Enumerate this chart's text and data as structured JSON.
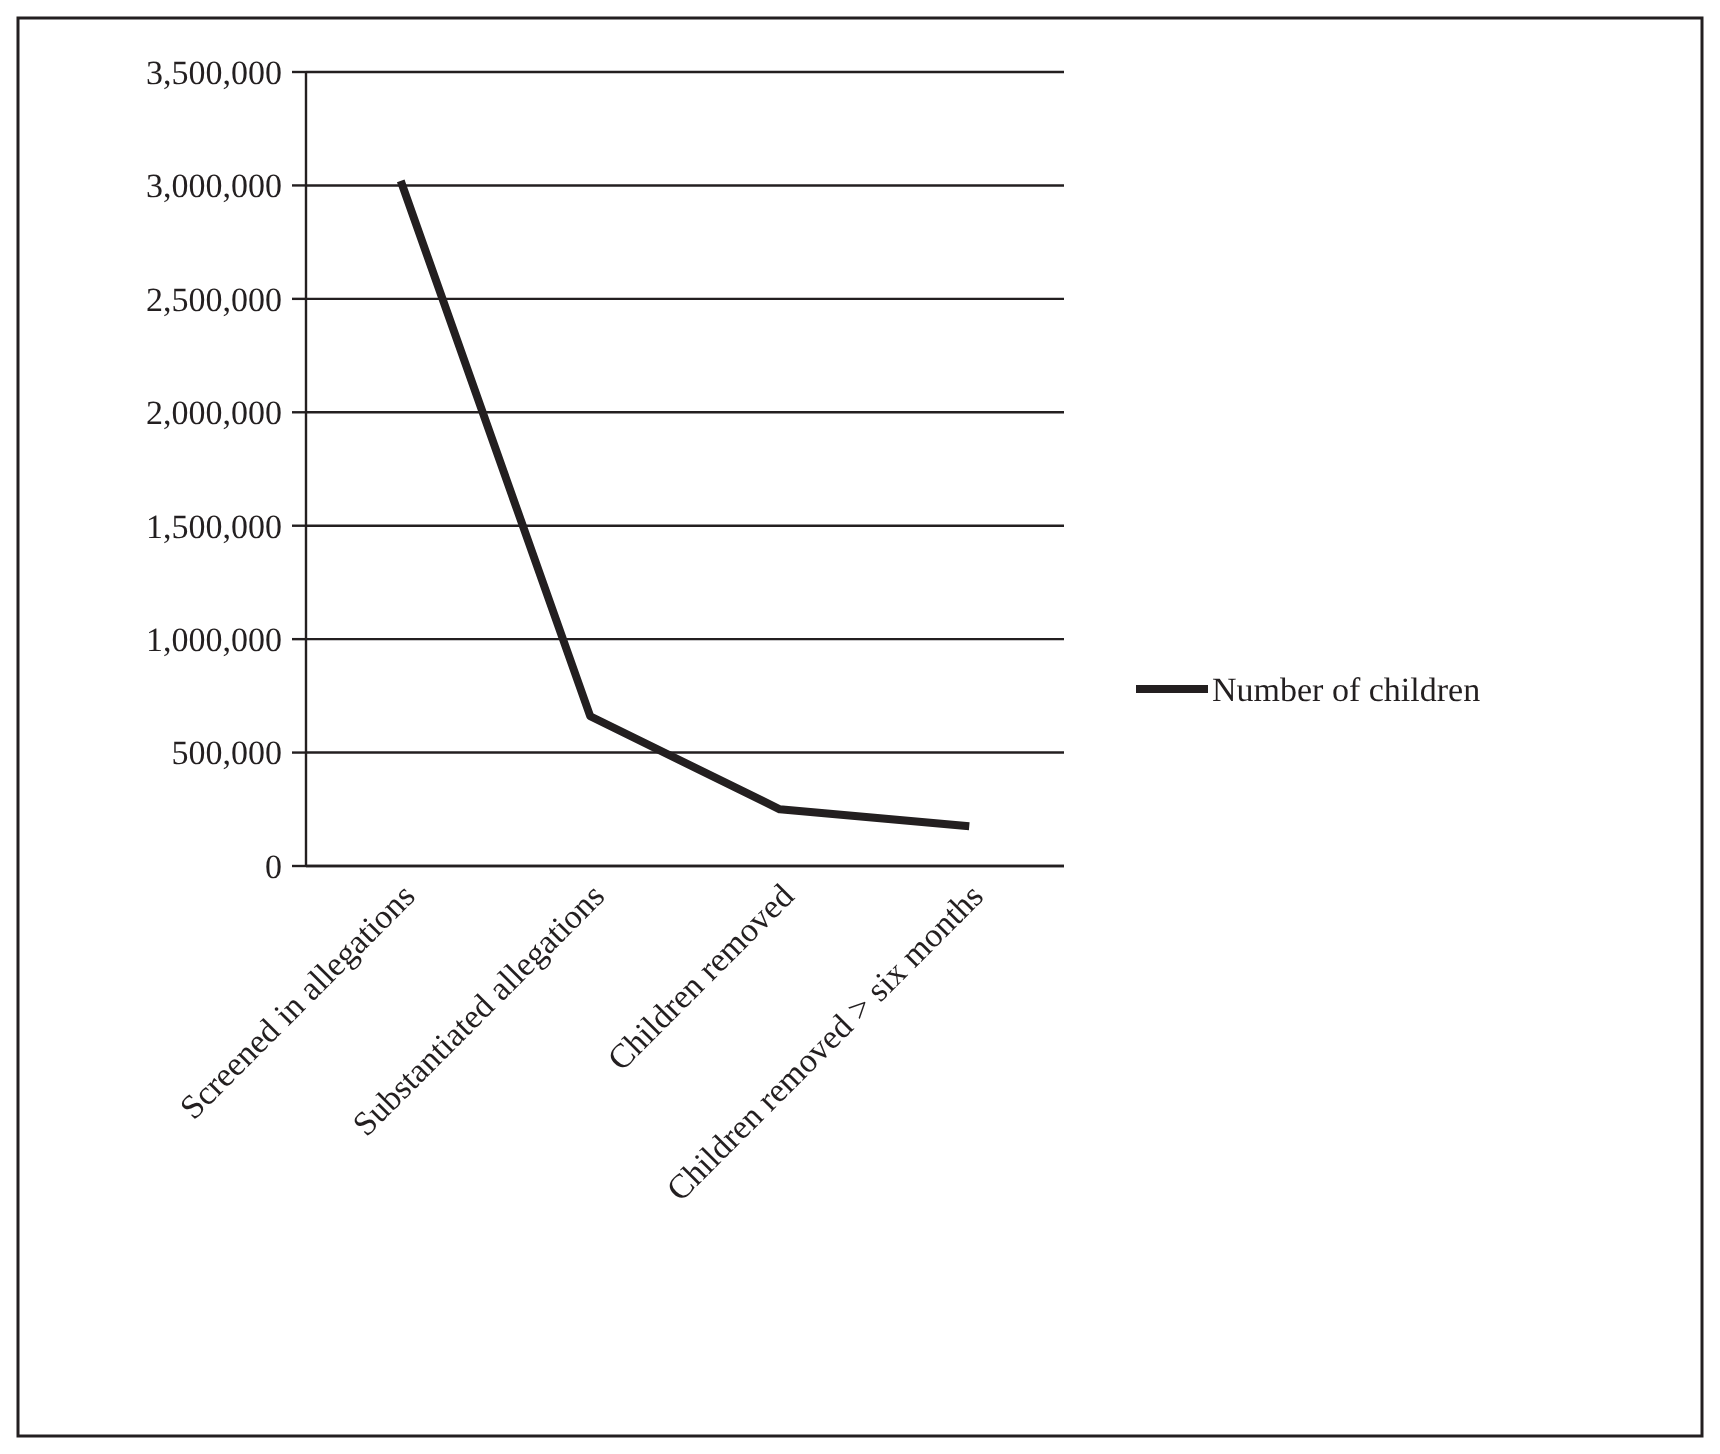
{
  "chart_data": {
    "type": "line",
    "categories": [
      "Screened in allegations",
      "Substantiated allegations",
      "Children removed",
      "Children removed > six months"
    ],
    "series": [
      {
        "name": "Number of children",
        "color": "#231f20",
        "values": [
          3020000,
          660000,
          250000,
          175000
        ]
      }
    ],
    "ylim": [
      0,
      3500000
    ],
    "yticks": [
      {
        "value": 0,
        "label": "0"
      },
      {
        "value": 500000,
        "label": "500,000"
      },
      {
        "value": 1000000,
        "label": "1,000,000"
      },
      {
        "value": 1500000,
        "label": "1,500,000"
      },
      {
        "value": 2000000,
        "label": "2,000,000"
      },
      {
        "value": 2500000,
        "label": "2,500,000"
      },
      {
        "value": 3000000,
        "label": "3,000,000"
      },
      {
        "value": 3500000,
        "label": "3,500,000"
      }
    ],
    "grid": "y",
    "legend": "right",
    "marker": "none",
    "line_style": "solid"
  }
}
